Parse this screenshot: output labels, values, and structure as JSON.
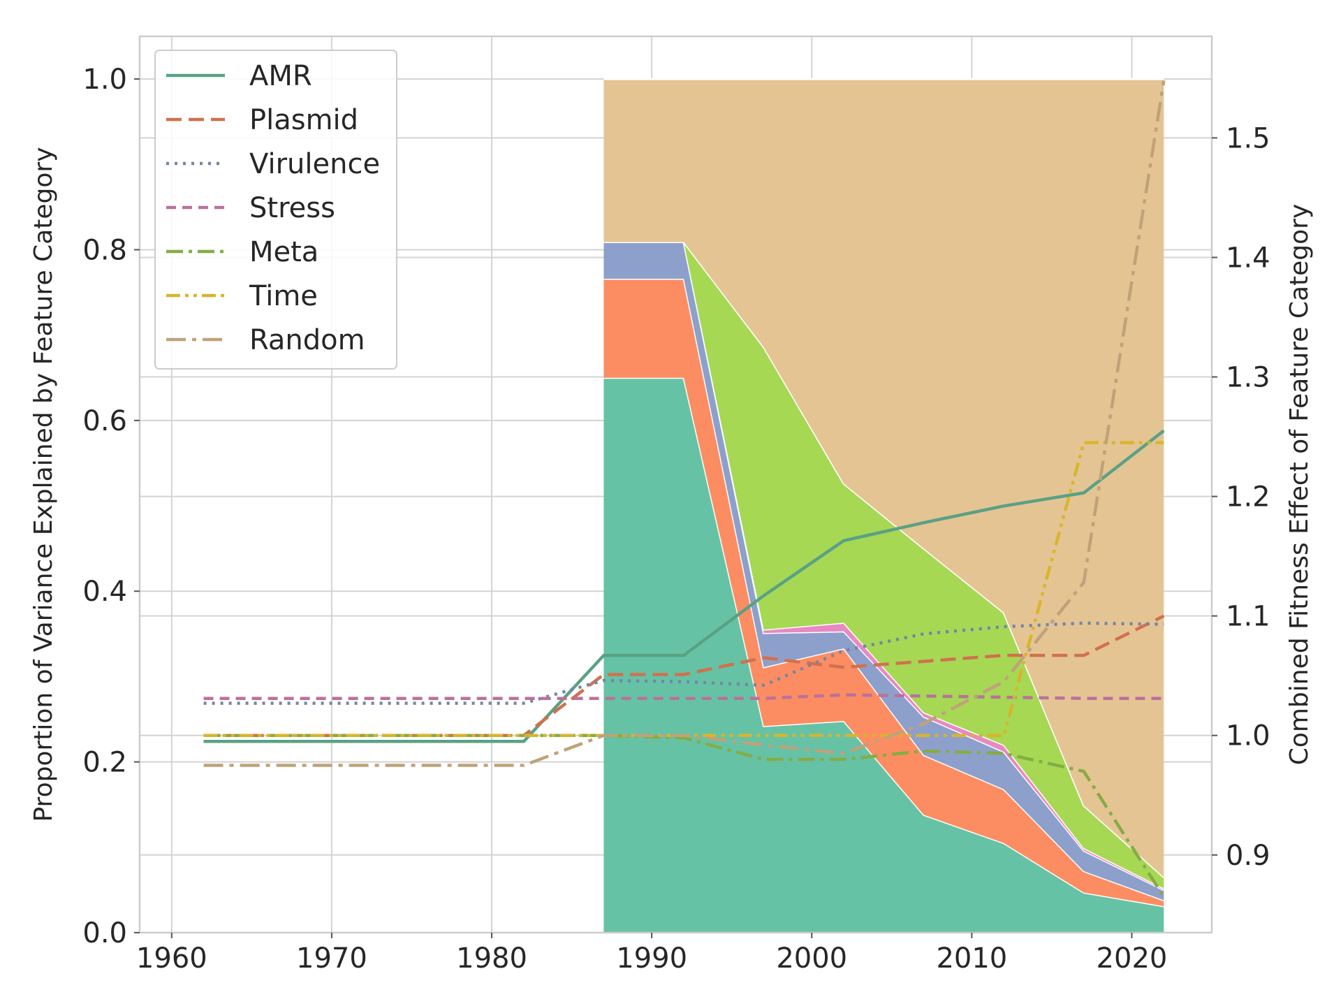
{
  "chart_data": {
    "type": "area",
    "xlabel": "",
    "ylabel": "Proportion of Variance Explained by Feature Category",
    "y2label": "Combined Fitness Effect of Feature Category",
    "xlim": [
      1958,
      2025
    ],
    "ylim": [
      0,
      1.05
    ],
    "y2lim": [
      0.835,
      1.585
    ],
    "xticks": [
      1960,
      1970,
      1980,
      1990,
      2000,
      2010,
      2020
    ],
    "yticks": [
      0.0,
      0.2,
      0.4,
      0.6,
      0.8,
      1.0
    ],
    "y2ticks": [
      0.9,
      1.0,
      1.1,
      1.2,
      1.3,
      1.4,
      1.5
    ],
    "grid": true,
    "legend_position": "top-left",
    "variance_areas": {
      "x": [
        1987,
        1992,
        1997,
        2002,
        2007,
        2012,
        2017,
        2022
      ],
      "series": [
        {
          "key": "AMR",
          "color": "#66c2a5",
          "values": [
            0.65,
            0.65,
            0.242,
            0.248,
            0.138,
            0.105,
            0.047,
            0.031
          ]
        },
        {
          "key": "Plasmid",
          "color": "#fc8d62",
          "values": [
            0.116,
            0.116,
            0.069,
            0.085,
            0.07,
            0.063,
            0.025,
            0.007
          ]
        },
        {
          "key": "Virulence",
          "color": "#8da0cb",
          "values": [
            0.043,
            0.043,
            0.04,
            0.02,
            0.045,
            0.044,
            0.024,
            0.012
          ]
        },
        {
          "key": "Stress",
          "color": "#e78ac3",
          "values": [
            0.0,
            0.0,
            0.004,
            0.01,
            0.005,
            0.008,
            0.003,
            0.002
          ]
        },
        {
          "key": "Meta",
          "color": "#a6d854",
          "values": [
            0.0,
            0.0,
            0.331,
            0.163,
            0.192,
            0.155,
            0.05,
            0.013
          ]
        },
        {
          "key": "Time",
          "color": "#ffd92f",
          "values": [
            0.0,
            0.0,
            0.0,
            0.0,
            0.0,
            0.0,
            0.0,
            0.0
          ]
        },
        {
          "key": "Random",
          "color": "#e5c494",
          "values": [
            0.191,
            0.191,
            0.314,
            0.474,
            0.55,
            0.625,
            0.851,
            0.935
          ]
        }
      ]
    },
    "fitness_lines": {
      "x": [
        1962,
        1967,
        1972,
        1977,
        1982,
        1987,
        1992,
        1997,
        2002,
        2007,
        2012,
        2017,
        2022
      ],
      "series": [
        {
          "name": "AMR",
          "color": "#5aa184",
          "dash": "solid",
          "values": [
            0.995,
            0.995,
            0.995,
            0.995,
            0.995,
            1.067,
            1.067,
            1.117,
            1.163,
            1.178,
            1.192,
            1.203,
            1.255
          ]
        },
        {
          "name": "Plasmid",
          "color": "#d0714e",
          "dash": "dashed",
          "values": [
            1.0,
            1.0,
            1.0,
            1.0,
            1.0,
            1.051,
            1.051,
            1.065,
            1.057,
            1.062,
            1.067,
            1.067,
            1.1
          ]
        },
        {
          "name": "Virulence",
          "color": "#7385a6",
          "dash": "dotted",
          "values": [
            1.027,
            1.027,
            1.027,
            1.027,
            1.027,
            1.046,
            1.045,
            1.042,
            1.071,
            1.085,
            1.091,
            1.094,
            1.093
          ]
        },
        {
          "name": "Stress",
          "color": "#b9729c",
          "dash": "dashed-short",
          "values": [
            1.031,
            1.031,
            1.031,
            1.031,
            1.031,
            1.031,
            1.031,
            1.031,
            1.034,
            1.033,
            1.032,
            1.031,
            1.031
          ]
        },
        {
          "name": "Meta",
          "color": "#86ac44",
          "dash": "dashdot",
          "values": [
            1.0,
            1.0,
            1.0,
            1.0,
            1.0,
            1.0,
            0.998,
            0.98,
            0.98,
            0.987,
            0.985,
            0.97,
            0.865
          ]
        },
        {
          "name": "Time",
          "color": "#d8b52c",
          "dash": "dashdotdot",
          "values": [
            1.0,
            1.0,
            1.0,
            1.0,
            1.0,
            1.0,
            1.0,
            1.0,
            1.0,
            1.0,
            1.0,
            1.245,
            1.245
          ]
        },
        {
          "name": "Random",
          "color": "#bfa27a",
          "dash": "dashdot-long",
          "values": [
            0.975,
            0.975,
            0.975,
            0.975,
            0.975,
            1.0,
            1.0,
            0.992,
            0.985,
            1.01,
            1.045,
            1.128,
            1.548
          ]
        }
      ]
    }
  }
}
